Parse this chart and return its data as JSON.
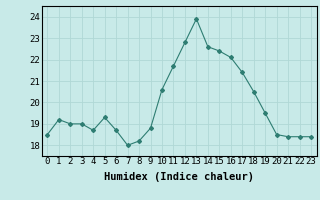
{
  "x": [
    0,
    1,
    2,
    3,
    4,
    5,
    6,
    7,
    8,
    9,
    10,
    11,
    12,
    13,
    14,
    15,
    16,
    17,
    18,
    19,
    20,
    21,
    22,
    23
  ],
  "y": [
    18.5,
    19.2,
    19.0,
    19.0,
    18.7,
    19.3,
    18.7,
    18.0,
    18.2,
    18.8,
    20.6,
    21.7,
    22.8,
    23.9,
    22.6,
    22.4,
    22.1,
    21.4,
    20.5,
    19.5,
    18.5,
    18.4,
    18.4,
    18.4
  ],
  "xlabel": "Humidex (Indice chaleur)",
  "ylim": [
    17.5,
    24.5
  ],
  "xlim": [
    -0.5,
    23.5
  ],
  "yticks": [
    18,
    19,
    20,
    21,
    22,
    23,
    24
  ],
  "xticks": [
    0,
    1,
    2,
    3,
    4,
    5,
    6,
    7,
    8,
    9,
    10,
    11,
    12,
    13,
    14,
    15,
    16,
    17,
    18,
    19,
    20,
    21,
    22,
    23
  ],
  "xtick_labels": [
    "0",
    "1",
    "2",
    "3",
    "4",
    "5",
    "6",
    "7",
    "8",
    "9",
    "10",
    "11",
    "12",
    "13",
    "14",
    "15",
    "16",
    "17",
    "18",
    "19",
    "20",
    "21",
    "22",
    "23"
  ],
  "line_color": "#2e7d72",
  "marker": "D",
  "marker_size": 2.0,
  "bg_color": "#c8eae8",
  "grid_color": "#b0d8d5",
  "xlabel_fontsize": 7.5,
  "tick_fontsize": 6.5
}
